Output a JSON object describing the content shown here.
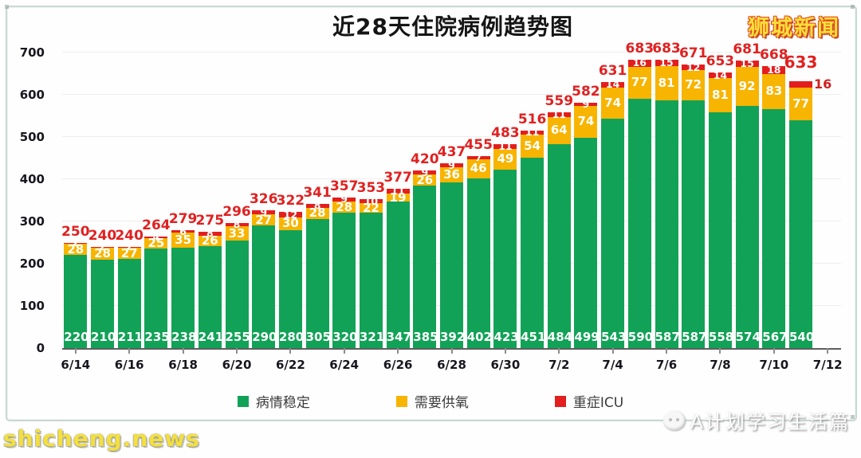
{
  "title": "近28天住院病例趋势图",
  "watermarks": {
    "top_right": "狮城新闻",
    "bottom_left": "shicheng.news",
    "bottom_right": "A计划学习生活篇"
  },
  "legend": {
    "items": [
      "病情稳定",
      "需要供氧",
      "重症ICU"
    ]
  },
  "chart_data": {
    "type": "bar",
    "stacked": true,
    "title": "近28天住院病例趋势图",
    "xlabel": "",
    "ylabel": "",
    "ylim": [
      0,
      700
    ],
    "yticks": [
      0,
      100,
      200,
      300,
      400,
      500,
      600,
      700
    ],
    "grid": "faint-horizontal",
    "legend_position": "bottom-center",
    "xtick_labels": [
      "6/14",
      "6/16",
      "6/18",
      "6/20",
      "6/22",
      "6/24",
      "6/26",
      "6/28",
      "6/30",
      "7/2",
      "7/4",
      "7/6",
      "7/8",
      "7/10",
      "7/12"
    ],
    "series": [
      {
        "name": "病情稳定",
        "color": "#12a257",
        "values": [
          220,
          210,
          211,
          235,
          238,
          241,
          255,
          290,
          280,
          305,
          320,
          321,
          347,
          385,
          392,
          402,
          423,
          451,
          484,
          499,
          543,
          590,
          587,
          587,
          558,
          574,
          567,
          540
        ]
      },
      {
        "name": "需要供氧",
        "color": "#f7b400",
        "values": [
          28,
          28,
          27,
          25,
          35,
          26,
          33,
          27,
          30,
          28,
          28,
          22,
          19,
          26,
          36,
          46,
          49,
          54,
          64,
          74,
          74,
          77,
          81,
          72,
          81,
          92,
          83,
          77
        ]
      },
      {
        "name": "重症ICU",
        "color": "#e31e1e",
        "values": [
          2,
          2,
          2,
          4,
          6,
          8,
          8,
          9,
          12,
          8,
          9,
          10,
          11,
          9,
          9,
          7,
          11,
          11,
          11,
          9,
          14,
          16,
          15,
          12,
          14,
          15,
          18,
          16
        ]
      }
    ],
    "totals": [
      250,
      240,
      240,
      264,
      279,
      275,
      296,
      326,
      322,
      341,
      357,
      353,
      377,
      420,
      437,
      455,
      483,
      516,
      559,
      582,
      631,
      683,
      683,
      671,
      653,
      681,
      668,
      633
    ],
    "total_label_color": "#e02121",
    "note": "last bar ICU value 16 labeled in red outside the bar, total 633 emphasized"
  }
}
